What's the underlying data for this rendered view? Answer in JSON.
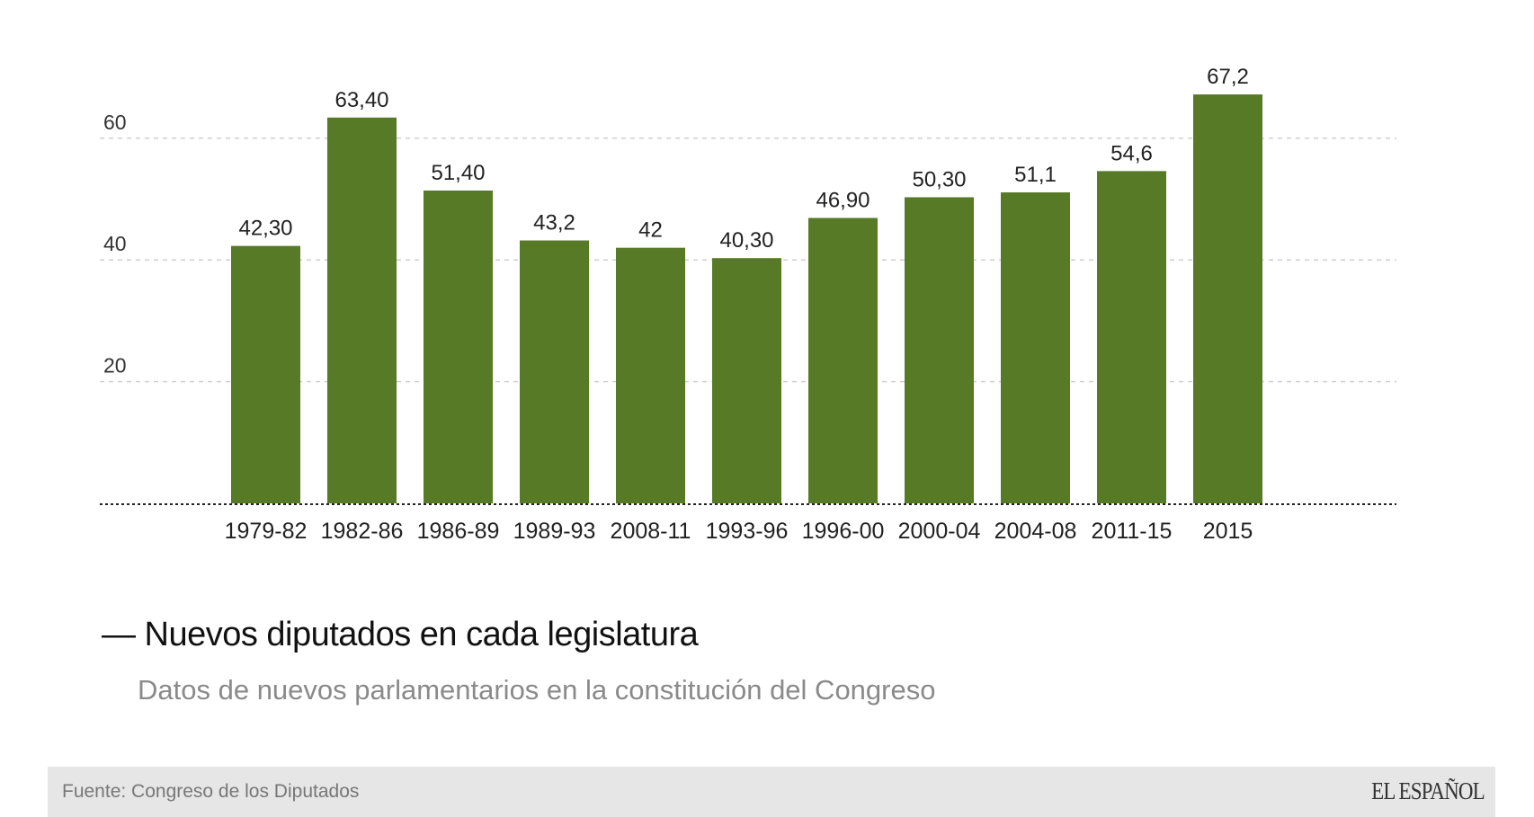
{
  "chart_data": {
    "type": "bar",
    "title": "Nuevos diputados en cada legislatura",
    "subtitle": "Datos de nuevos parlamentarios en la constitución del Congreso",
    "xlabel": "",
    "ylabel": "",
    "ylim": [
      0,
      70
    ],
    "yticks": [
      20,
      40,
      60
    ],
    "ytick_labels": [
      "20",
      "40",
      "60"
    ],
    "grid": true,
    "categories": [
      "1979-82",
      "1982-86",
      "1986-89",
      "1989-93",
      "2008-11",
      "1993-96",
      "1996-00",
      "2000-04",
      "2004-08",
      "2011-15",
      "2015"
    ],
    "values": [
      42.3,
      63.4,
      51.4,
      43.2,
      42,
      40.3,
      46.9,
      50.3,
      51.1,
      54.6,
      67.2
    ],
    "data_labels": [
      "42,30",
      "63,40",
      "51,40",
      "43,2",
      "42",
      "40,30",
      "46,90",
      "50,30",
      "51,1",
      "54,6",
      "67,2"
    ],
    "bar_color": "#567a26"
  },
  "header": {
    "title_dash": "—",
    "title": "Nuevos diputados en cada legislatura",
    "subtitle": "Datos de nuevos parlamentarios en la constitución del Congreso"
  },
  "footer": {
    "source": "Fuente: Congreso de los Diputados",
    "logo": "EL ESPAÑOL"
  }
}
